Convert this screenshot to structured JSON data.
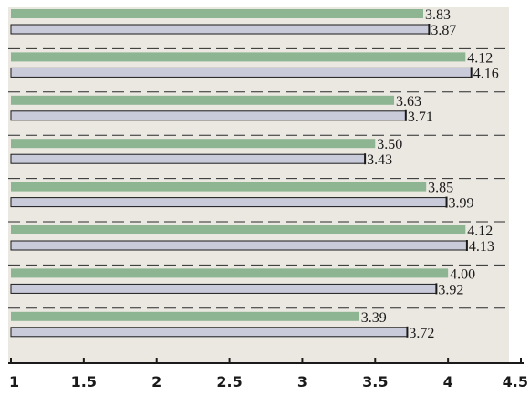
{
  "chart_data": {
    "type": "bar",
    "orientation": "horizontal",
    "title": "",
    "xlabel": "",
    "ylabel": "",
    "categories": [
      "",
      "",
      "",
      "",
      "",
      "",
      "",
      ""
    ],
    "series": [
      {
        "values": [
          3.83,
          4.12,
          3.63,
          3.5,
          3.85,
          4.12,
          4.0,
          3.39
        ],
        "labels": [
          "3.83",
          "4.12",
          "3.63",
          "3.50",
          "3.85",
          "4.12",
          "4.00",
          "3.39"
        ],
        "color": "#8db592"
      },
      {
        "values": [
          3.87,
          4.16,
          3.71,
          3.43,
          3.99,
          4.13,
          3.92,
          3.72
        ],
        "labels": [
          "3.87",
          "4.16",
          "3.71",
          "3.43",
          "3.99",
          "4.13",
          "3.92",
          "3.72"
        ],
        "color": "#c9cbda"
      }
    ],
    "xlim": [
      1,
      4.5
    ],
    "x_ticks": [
      1,
      1.5,
      2,
      2.5,
      3,
      3.5,
      4,
      4.5
    ],
    "x_tick_labels": [
      "1",
      "1.5",
      "2",
      "2.5",
      "3",
      "3.5",
      "4",
      "4.5"
    ],
    "grid": "dashed horizontal separators between groups",
    "legend": "none",
    "colors": {
      "plot_background": "#ebe8e2",
      "axis": "#1a1a1a",
      "bar_outline": "#1a1a1a"
    }
  }
}
